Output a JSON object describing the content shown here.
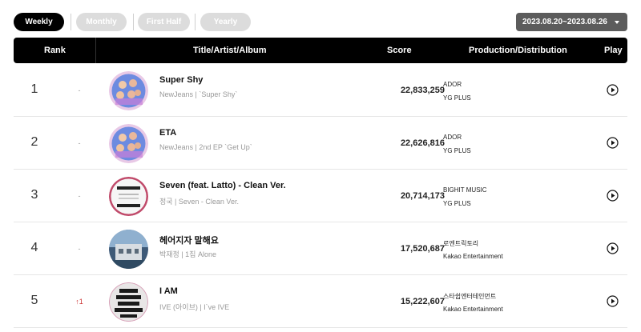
{
  "filters": {
    "tabs": [
      {
        "label": "Weekly",
        "active": true
      },
      {
        "label": "Monthly",
        "active": false
      },
      {
        "label": "First Half",
        "active": false
      },
      {
        "label": "Yearly",
        "active": false
      }
    ],
    "date_range": "2023.08.20~2023.08.26"
  },
  "table": {
    "headers": {
      "rank": "Rank",
      "title": "Title/Artist/Album",
      "score": "Score",
      "production": "Production/Distribution",
      "play": "Play"
    },
    "rows": [
      {
        "rank": "1",
        "change": "-",
        "title": "Super Shy",
        "sub": "NewJeans | `Super Shy`",
        "score": "22,833,259",
        "production": "ADOR",
        "distribution": "YG PLUS",
        "cover_color": "#5a7fd6"
      },
      {
        "rank": "2",
        "change": "-",
        "title": "ETA",
        "sub": "NewJeans | 2nd EP `Get Up`",
        "score": "22,626,816",
        "production": "ADOR",
        "distribution": "YG PLUS",
        "cover_color": "#5a7fd6"
      },
      {
        "rank": "3",
        "change": "-",
        "title": "Seven (feat. Latto) - Clean Ver.",
        "sub": "정국 | Seven - Clean Ver.",
        "score": "20,714,173",
        "production": "BIGHIT MUSIC",
        "distribution": "YG PLUS",
        "cover_color": "#f4f4f4"
      },
      {
        "rank": "4",
        "change": "-",
        "title": "헤어지자 말해요",
        "sub": "박재정 | 1집 Alone",
        "score": "17,520,687",
        "production": "로엔트릭토리",
        "distribution": "Kakao Entertainment",
        "cover_color": "#6f8fae"
      },
      {
        "rank": "5",
        "change": "↑1",
        "title": "I AM",
        "sub": "IVE (아이브) | I`ve IVE",
        "score": "15,222,607",
        "production": "스타쉽엔터테인먼트",
        "distribution": "Kakao Entertainment",
        "cover_color": "#eeeeee"
      }
    ]
  },
  "icons": {
    "play": "play-circle-icon",
    "dropdown": "caret-down-icon"
  }
}
